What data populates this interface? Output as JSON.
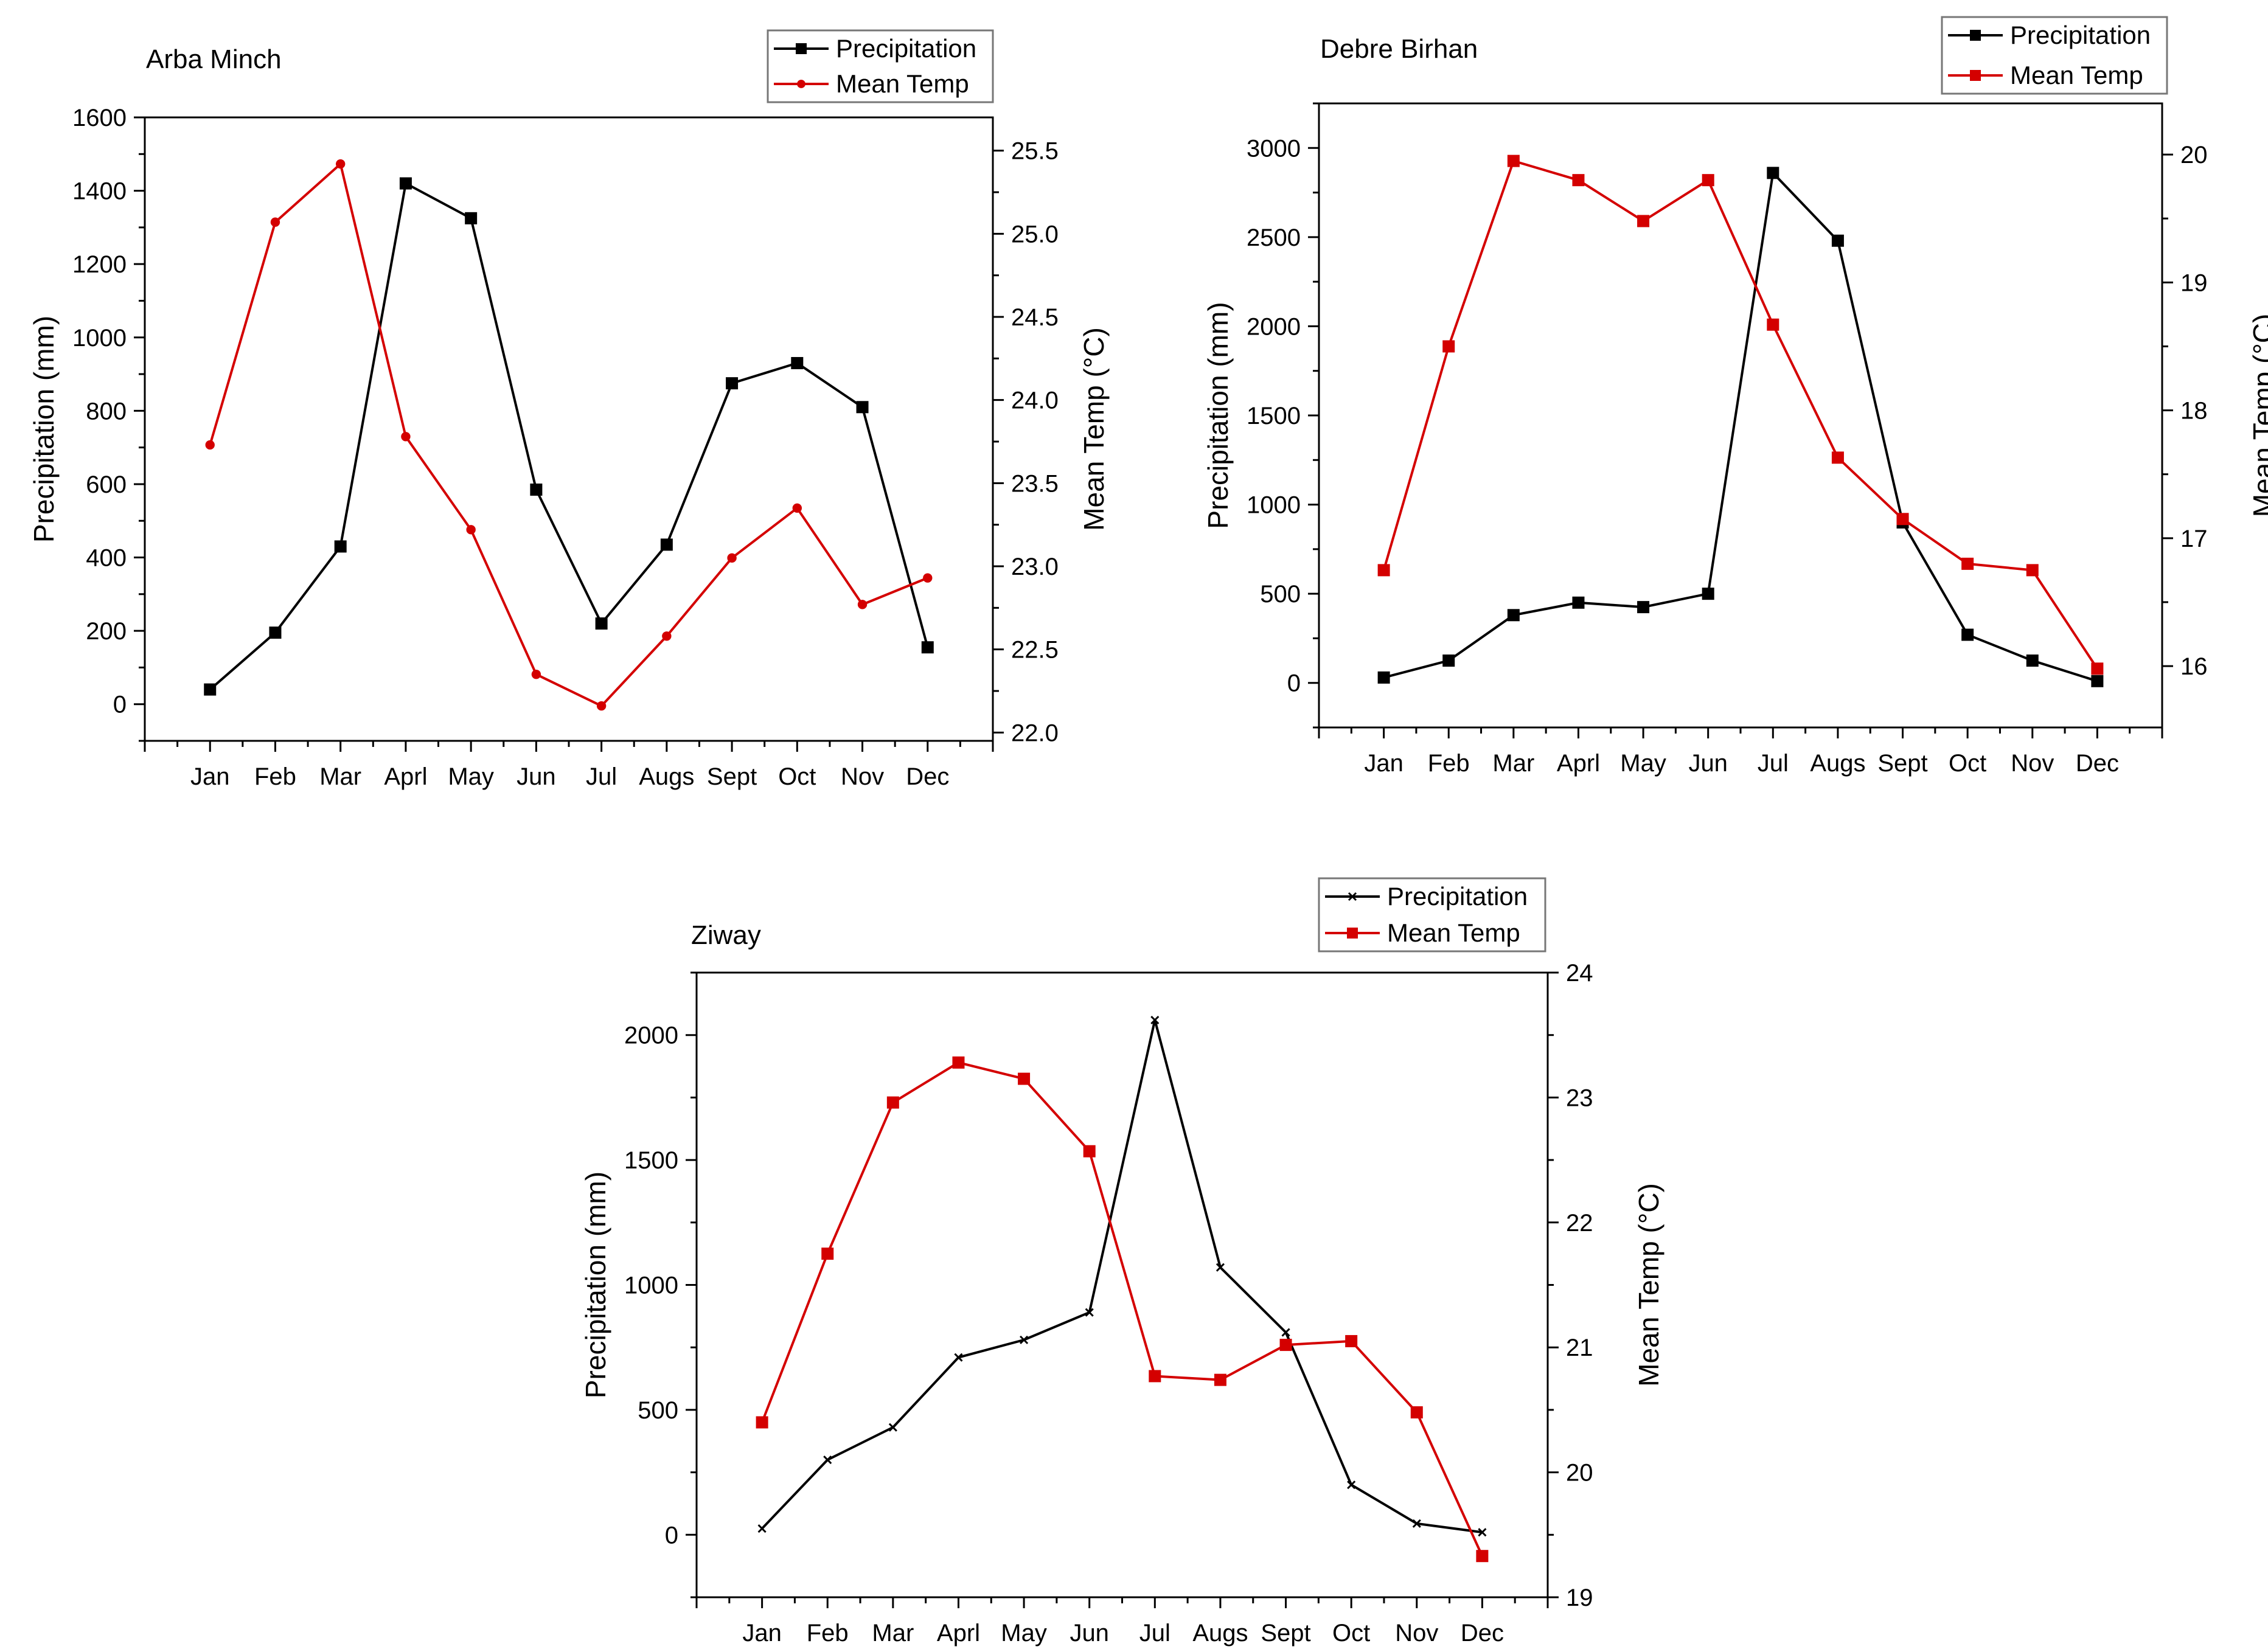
{
  "chart_data": [
    {
      "type": "line",
      "title": "Arba Minch",
      "xlabel": "",
      "ylabel": "Precipitation (mm)",
      "y2label": "Mean Temp (°C)",
      "categories": [
        "Jan",
        "Feb",
        "Mar",
        "Aprl",
        "May",
        "Jun",
        "Jul",
        "Augs",
        "Sept",
        "Oct",
        "Nov",
        "Dec"
      ],
      "ylim": [
        -100,
        1600
      ],
      "yticks": [
        0,
        200,
        400,
        600,
        800,
        1000,
        1200,
        1400,
        1600
      ],
      "y2lim": [
        21.95,
        25.7
      ],
      "y2ticks": [
        22.0,
        22.5,
        23.0,
        23.5,
        24.0,
        24.5,
        25.0,
        25.5
      ],
      "y2tick_labels": [
        "22.0",
        "22.5",
        "23.0",
        "23.5",
        "24.0",
        "24.5",
        "25.0",
        "25.5"
      ],
      "legend_position": "top-right",
      "series": [
        {
          "name": "Precipitation",
          "axis": "left",
          "color": "#000000",
          "marker": "square",
          "values": [
            40,
            195,
            430,
            1420,
            1325,
            585,
            220,
            435,
            875,
            930,
            810,
            155
          ]
        },
        {
          "name": "Mean Temp",
          "axis": "right",
          "color": "#d40000",
          "marker": "circle",
          "values": [
            23.73,
            25.07,
            25.42,
            23.78,
            23.22,
            22.35,
            22.16,
            22.58,
            23.05,
            23.35,
            22.77,
            22.93
          ]
        }
      ]
    },
    {
      "type": "line",
      "title": "Debre Birhan",
      "xlabel": "",
      "ylabel": "Precipitation (mm)",
      "y2label": "Mean Temp (°C)",
      "categories": [
        "Jan",
        "Feb",
        "Mar",
        "Aprl",
        "May",
        "Jun",
        "Jul",
        "Augs",
        "Sept",
        "Oct",
        "Nov",
        "Dec"
      ],
      "ylim": [
        -250,
        3250
      ],
      "yticks": [
        0,
        500,
        1000,
        1500,
        2000,
        2500,
        3000
      ],
      "y2lim": [
        15.52,
        20.4
      ],
      "y2ticks": [
        16,
        17,
        18,
        19,
        20
      ],
      "y2tick_labels": [
        "16",
        "17",
        "18",
        "19",
        "20"
      ],
      "legend_position": "top-right",
      "series": [
        {
          "name": "Precipitation",
          "axis": "left",
          "color": "#000000",
          "marker": "square",
          "values": [
            30,
            125,
            380,
            450,
            425,
            500,
            2860,
            2480,
            900,
            270,
            125,
            10
          ]
        },
        {
          "name": "Mean Temp",
          "axis": "right",
          "color": "#d40000",
          "marker": "square",
          "values": [
            16.75,
            18.5,
            19.95,
            19.8,
            19.48,
            19.8,
            18.67,
            17.63,
            17.15,
            16.8,
            16.75,
            15.98
          ]
        }
      ]
    },
    {
      "type": "line",
      "title": "Ziway",
      "xlabel": "",
      "ylabel": "Precipitation (mm)",
      "y2label": "Mean Temp (°C)",
      "categories": [
        "Jan",
        "Feb",
        "Mar",
        "Aprl",
        "May",
        "Jun",
        "Jul",
        "Augs",
        "Sept",
        "Oct",
        "Nov",
        "Dec"
      ],
      "ylim": [
        -250,
        2250
      ],
      "yticks": [
        0,
        500,
        1000,
        1500,
        2000
      ],
      "y2lim": [
        19,
        24
      ],
      "y2ticks": [
        19,
        20,
        21,
        22,
        23,
        24
      ],
      "y2tick_labels": [
        "19",
        "20",
        "21",
        "22",
        "23",
        "24"
      ],
      "legend_position": "top-right",
      "series": [
        {
          "name": "Precipitation",
          "axis": "left",
          "color": "#000000",
          "marker": "cross",
          "values": [
            25,
            300,
            430,
            710,
            780,
            890,
            2060,
            1070,
            810,
            200,
            45,
            10
          ]
        },
        {
          "name": "Mean Temp",
          "axis": "right",
          "color": "#d40000",
          "marker": "square",
          "values": [
            20.4,
            21.75,
            22.96,
            23.28,
            23.15,
            22.57,
            20.77,
            20.74,
            21.02,
            21.05,
            20.48,
            19.33
          ]
        }
      ]
    }
  ]
}
